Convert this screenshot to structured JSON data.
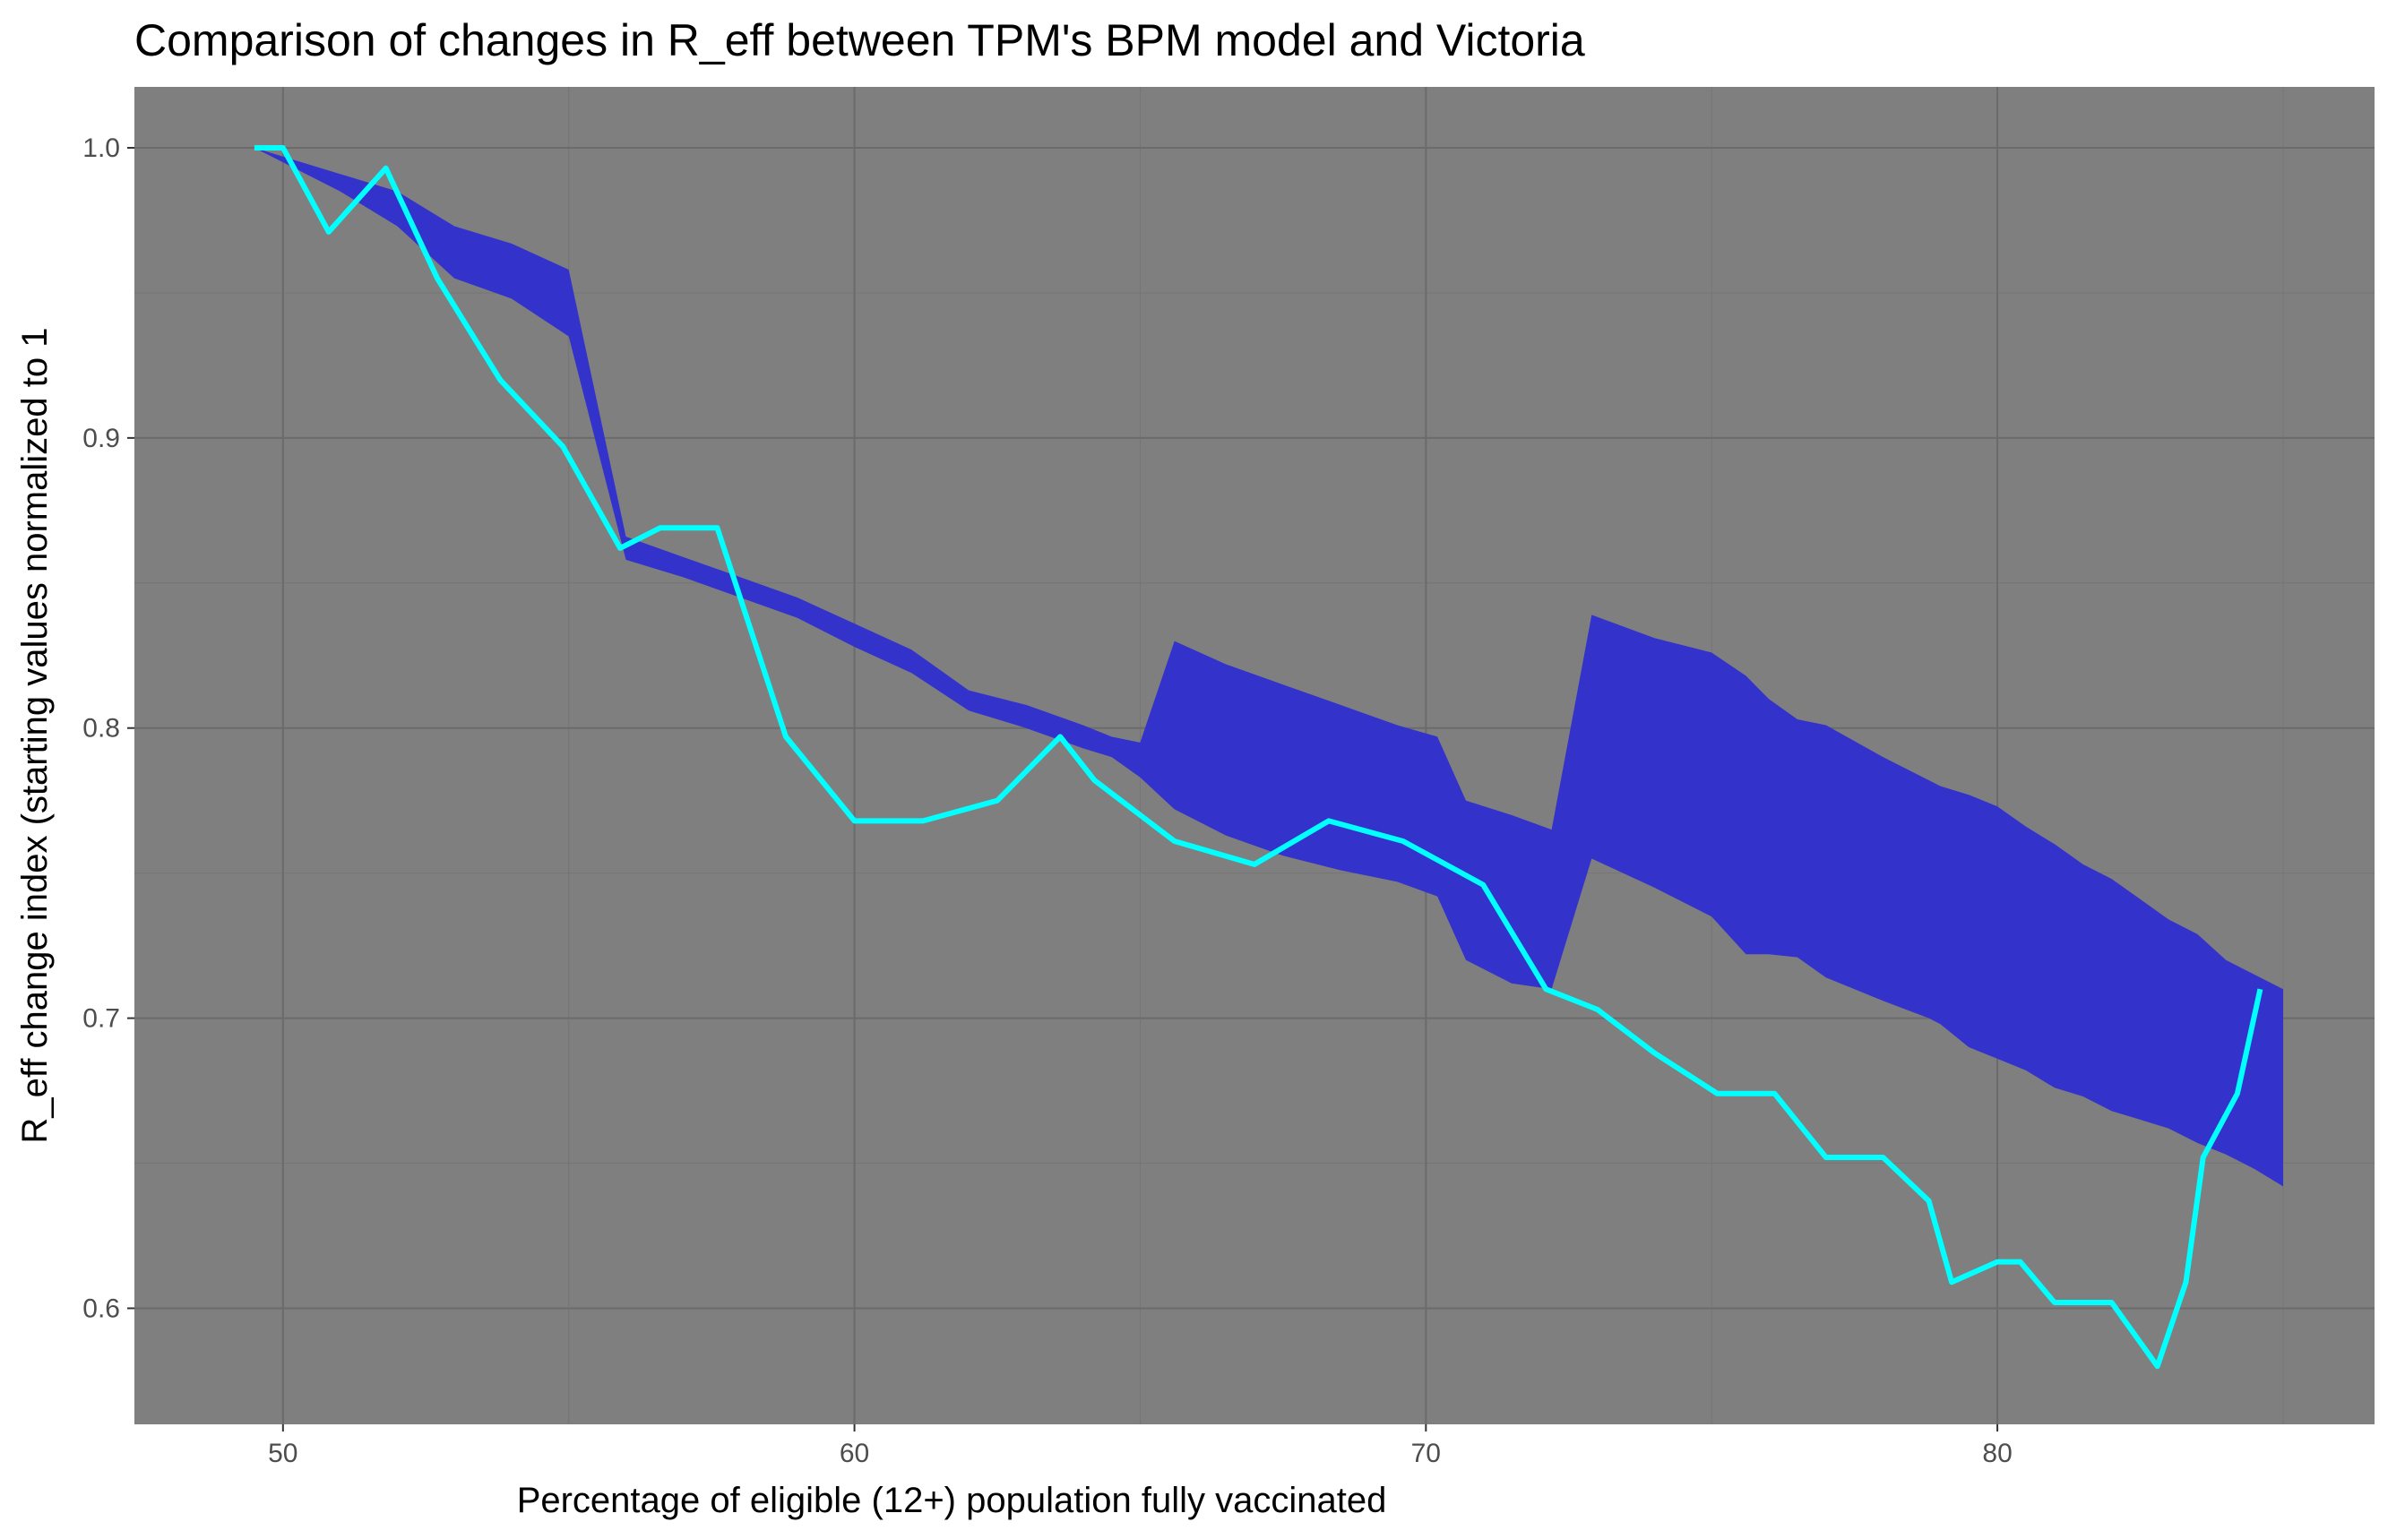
{
  "chart_data": {
    "type": "area",
    "title": "Comparison of changes in R_eff between TPM's BPM model and Victoria",
    "xlabel": "Percentage of eligible (12+) population fully vaccinated",
    "ylabel": "R_eff change index (starting values normalized to 1",
    "xlim": [
      47.4,
      86.6
    ],
    "ylim": [
      0.56,
      1.021
    ],
    "x_ticks": [
      50,
      60,
      70,
      80
    ],
    "y_ticks": [
      0.6,
      0.7,
      0.8,
      0.9,
      1.0
    ],
    "x_tick_labels": [
      "50",
      "60",
      "70",
      "80"
    ],
    "y_tick_labels": [
      "0.6",
      "0.7",
      "0.8",
      "0.9",
      "1.0"
    ],
    "grid": true,
    "colors": {
      "panel_background": "#7f7f7f",
      "grid_major": "#6b6b6b",
      "grid_minor": "#757575",
      "band_fill": "#3333cc",
      "line": "#00ffff"
    },
    "series": [
      {
        "type": "band",
        "x": [
          49.5,
          51.0,
          52.0,
          53.0,
          54.0,
          55.0,
          56.0,
          57.0,
          58.0,
          59.0,
          60.0,
          61.0,
          62.0,
          63.0,
          64.0,
          64.5,
          65.0,
          65.6,
          66.5,
          67.5,
          68.5,
          69.5,
          70.2,
          70.7,
          71.5,
          72.2,
          72.9,
          74.0,
          75.0,
          75.6,
          76.0,
          76.5,
          77.0,
          78.0,
          78.8,
          79.0,
          79.5,
          80.0,
          80.5,
          81.0,
          81.5,
          82.0,
          82.5,
          83.0,
          83.5,
          84.0,
          84.5,
          85.0
        ],
        "lower": [
          1.0,
          0.985,
          0.973,
          0.955,
          0.948,
          0.935,
          0.858,
          0.852,
          0.845,
          0.838,
          0.828,
          0.819,
          0.806,
          0.8,
          0.793,
          0.79,
          0.783,
          0.772,
          0.763,
          0.756,
          0.751,
          0.747,
          0.742,
          0.72,
          0.712,
          0.71,
          0.755,
          0.745,
          0.735,
          0.722,
          0.722,
          0.721,
          0.714,
          0.706,
          0.7,
          0.698,
          0.69,
          0.686,
          0.682,
          0.676,
          0.673,
          0.668,
          0.665,
          0.662,
          0.657,
          0.653,
          0.648,
          0.642
        ],
        "upper": [
          1.0,
          0.991,
          0.985,
          0.973,
          0.967,
          0.958,
          0.866,
          0.859,
          0.852,
          0.845,
          0.836,
          0.827,
          0.813,
          0.808,
          0.801,
          0.797,
          0.795,
          0.83,
          0.822,
          0.815,
          0.808,
          0.801,
          0.797,
          0.775,
          0.77,
          0.765,
          0.839,
          0.831,
          0.826,
          0.818,
          0.81,
          0.803,
          0.801,
          0.79,
          0.782,
          0.78,
          0.777,
          0.773,
          0.766,
          0.76,
          0.753,
          0.748,
          0.741,
          0.734,
          0.729,
          0.72,
          0.715,
          0.71
        ]
      },
      {
        "type": "line",
        "x": [
          49.5,
          50.0,
          50.8,
          51.8,
          52.7,
          53.8,
          54.9,
          55.9,
          56.6,
          57.0,
          57.6,
          58.8,
          60.0,
          61.2,
          62.5,
          63.6,
          64.2,
          65.6,
          67.0,
          68.3,
          69.6,
          71.0,
          72.1,
          73.0,
          74.0,
          75.1,
          76.1,
          77.0,
          78.0,
          78.8,
          79.2,
          80.0,
          80.4,
          81.0,
          82.0,
          82.8,
          83.3,
          83.6,
          84.2,
          84.6
        ],
        "y": [
          1.0,
          1.0,
          0.971,
          0.993,
          0.955,
          0.92,
          0.897,
          0.862,
          0.869,
          0.869,
          0.869,
          0.797,
          0.768,
          0.768,
          0.775,
          0.797,
          0.782,
          0.761,
          0.753,
          0.768,
          0.761,
          0.746,
          0.71,
          0.703,
          0.688,
          0.674,
          0.674,
          0.652,
          0.652,
          0.637,
          0.609,
          0.616,
          0.616,
          0.602,
          0.602,
          0.58,
          0.609,
          0.652,
          0.674,
          0.71
        ]
      }
    ]
  }
}
